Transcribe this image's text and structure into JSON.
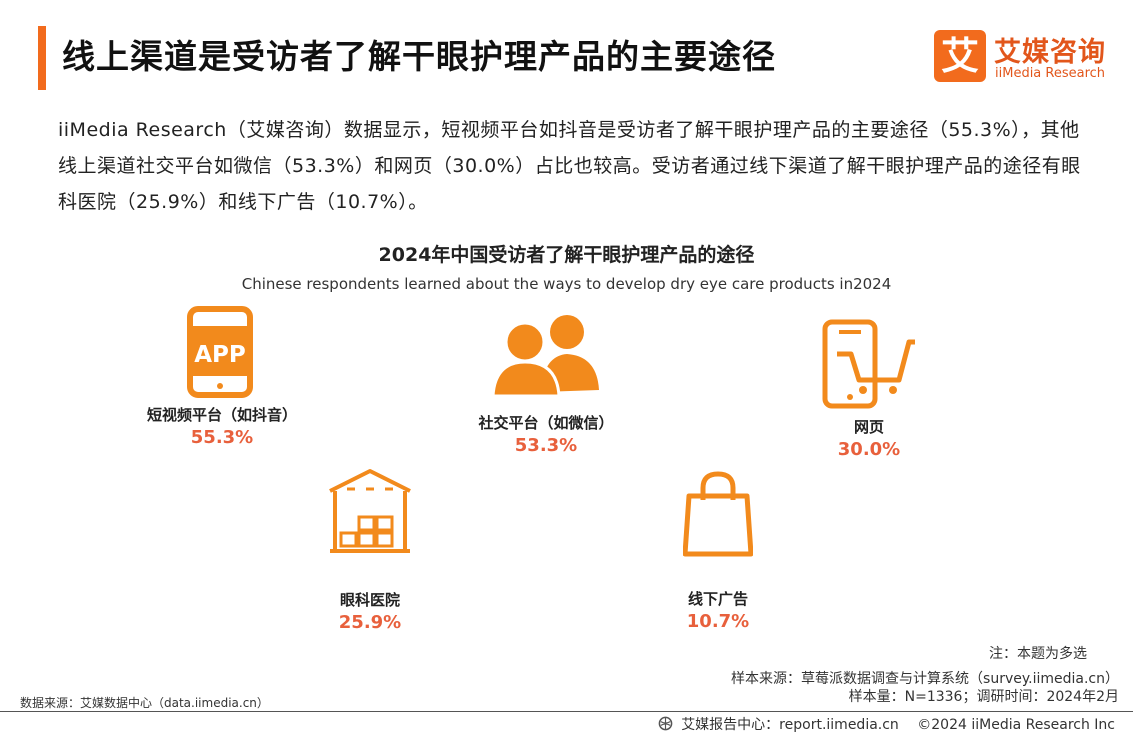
{
  "header": {
    "title": "线上渠道是受访者了解干眼护理产品的主要途径",
    "logo_icon_text": "艾",
    "logo_cn": "艾媒咨询",
    "logo_en": "iiMedia Research"
  },
  "intro": "iiMedia Research（艾媒咨询）数据显示，短视频平台如抖音是受访者了解干眼护理产品的主要途径（55.3%），其他线上渠道社交平台如微信（53.3%）和网页（30.0%）占比也较高。受访者通过线下渠道了解干眼护理产品的途径有眼科医院（25.9%）和线下广告（10.7%）。",
  "chart_data": {
    "type": "table",
    "title": "2024年中国受访者了解干眼护理产品的途径",
    "subtitle": "Chinese respondents learned about the ways to develop dry eye care products in2024",
    "categories": [
      "短视频平台（如抖音）",
      "社交平台（如微信）",
      "网页",
      "眼科医院",
      "线下广告"
    ],
    "values": [
      "55.3%",
      "53.3%",
      "30.0%",
      "25.9%",
      "10.7%"
    ],
    "icons": [
      "app-phone-icon",
      "people-icon",
      "phone-cart-icon",
      "warehouse-icon",
      "shopping-bag-icon"
    ],
    "accent_color": "#f28a1c",
    "value_color": "#e8603c"
  },
  "notes": {
    "multi_select": "注：本题为多选",
    "sample_source": "样本来源：草莓派数据调查与计算系统（survey.iimedia.cn）",
    "sample_size": "样本量：N=1336；调研时间：2024年2月",
    "data_source": "数据来源：艾媒数据中心（data.iimedia.cn）"
  },
  "footer": {
    "report_center": "艾媒报告中心：report.iimedia.cn",
    "copyright": "©2024 iiMedia Research Inc"
  }
}
